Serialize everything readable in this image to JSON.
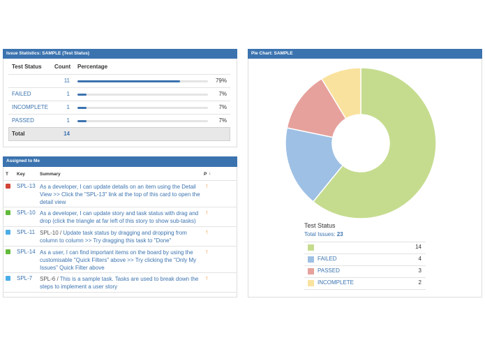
{
  "issue_statistics": {
    "title": "Issue Statistics: SAMPLE (Test Status)",
    "headers": [
      "Test Status",
      "Count",
      "Percentage"
    ],
    "rows": [
      {
        "status": null,
        "count": 11,
        "percent": "79%"
      },
      {
        "status": "FAILED",
        "count": 1,
        "percent": "7%"
      },
      {
        "status": "INCOMPLETE",
        "count": 1,
        "percent": "7%"
      },
      {
        "status": "PASSED",
        "count": 1,
        "percent": "7%"
      }
    ],
    "total": {
      "label": "Total",
      "count": 14
    }
  },
  "assigned_to_me": {
    "title": "Assigned to Me",
    "headers": [
      "T",
      "Key",
      "Summary",
      "P"
    ],
    "rows": [
      {
        "key": "SPL-13",
        "summary": "As a developer, I can update details on an item using the Detail View >> Click the \"SPL-13\" link at the top of this card to open the detail view"
      },
      {
        "key": "SPL-10",
        "summary": "As a developer, I can update story and task status with drag and drop (click the triangle at far left of this story to show sub-tasks)"
      },
      {
        "key": "SPL-11",
        "parent": "SPL-10 /",
        "summary": "Update task status by dragging and dropping from column to column >> Try dragging this task to \"Done\""
      },
      {
        "key": "SPL-14",
        "summary": "As a user, I can find important items on the board by using the customisable \"Quick Filters\" above >> Try clicking the \"Only My Issues\" Quick Filter above"
      },
      {
        "key": "SPL-7",
        "parent": "SPL-6 /",
        "summary": "This is a sample task. Tasks are used to break down the steps to implement a user story"
      }
    ]
  },
  "pie_chart": {
    "title": "Pie Chart: SAMPLE",
    "legend_title": "Test Status",
    "total_label": "Total Issues:",
    "total": 23,
    "slices": [
      {
        "label": null,
        "value": 14,
        "color": "#c5dc8f"
      },
      {
        "label": "FAILED",
        "value": 4,
        "color": "#9ec0e4"
      },
      {
        "label": "PASSED",
        "value": 3,
        "color": "#e6a19c"
      },
      {
        "label": "INCOMPLETE",
        "value": 2,
        "color": "#f9e29e"
      }
    ]
  }
}
